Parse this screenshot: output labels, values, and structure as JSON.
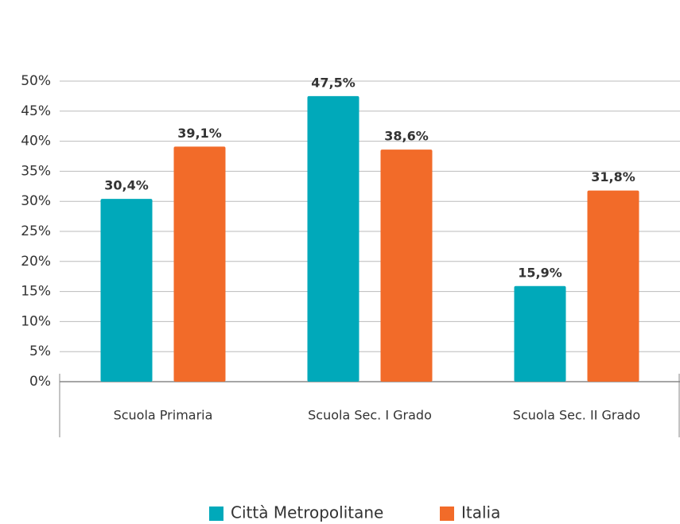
{
  "chart_data": {
    "type": "bar",
    "categories": [
      "Scuola Primaria",
      "Scuola Sec. I Grado",
      "Scuola Sec. II Grado"
    ],
    "series": [
      {
        "name": "Città Metropolitane",
        "color": "#00a9ba",
        "values": [
          30.4,
          47.5,
          15.9
        ],
        "value_labels": [
          "30,4%",
          "47,5%",
          "15,9%"
        ]
      },
      {
        "name": "Italia",
        "color": "#f26b29",
        "values": [
          39.1,
          38.6,
          31.8
        ],
        "value_labels": [
          "39,1%",
          "38,6%",
          "31,8%"
        ]
      }
    ],
    "ylim": [
      0,
      50
    ],
    "yticks": [
      {
        "value": 0,
        "label": "0%"
      },
      {
        "value": 5,
        "label": "5%"
      },
      {
        "value": 10,
        "label": "10%"
      },
      {
        "value": 15,
        "label": "15%"
      },
      {
        "value": 20,
        "label": "20%"
      },
      {
        "value": 25,
        "label": "25%"
      },
      {
        "value": 30,
        "label": "30%"
      },
      {
        "value": 35,
        "label": "35%"
      },
      {
        "value": 40,
        "label": "40%"
      },
      {
        "value": 45,
        "label": "45%"
      },
      {
        "value": 50,
        "label": "50%"
      }
    ],
    "grid": true,
    "legend": "bottom"
  }
}
